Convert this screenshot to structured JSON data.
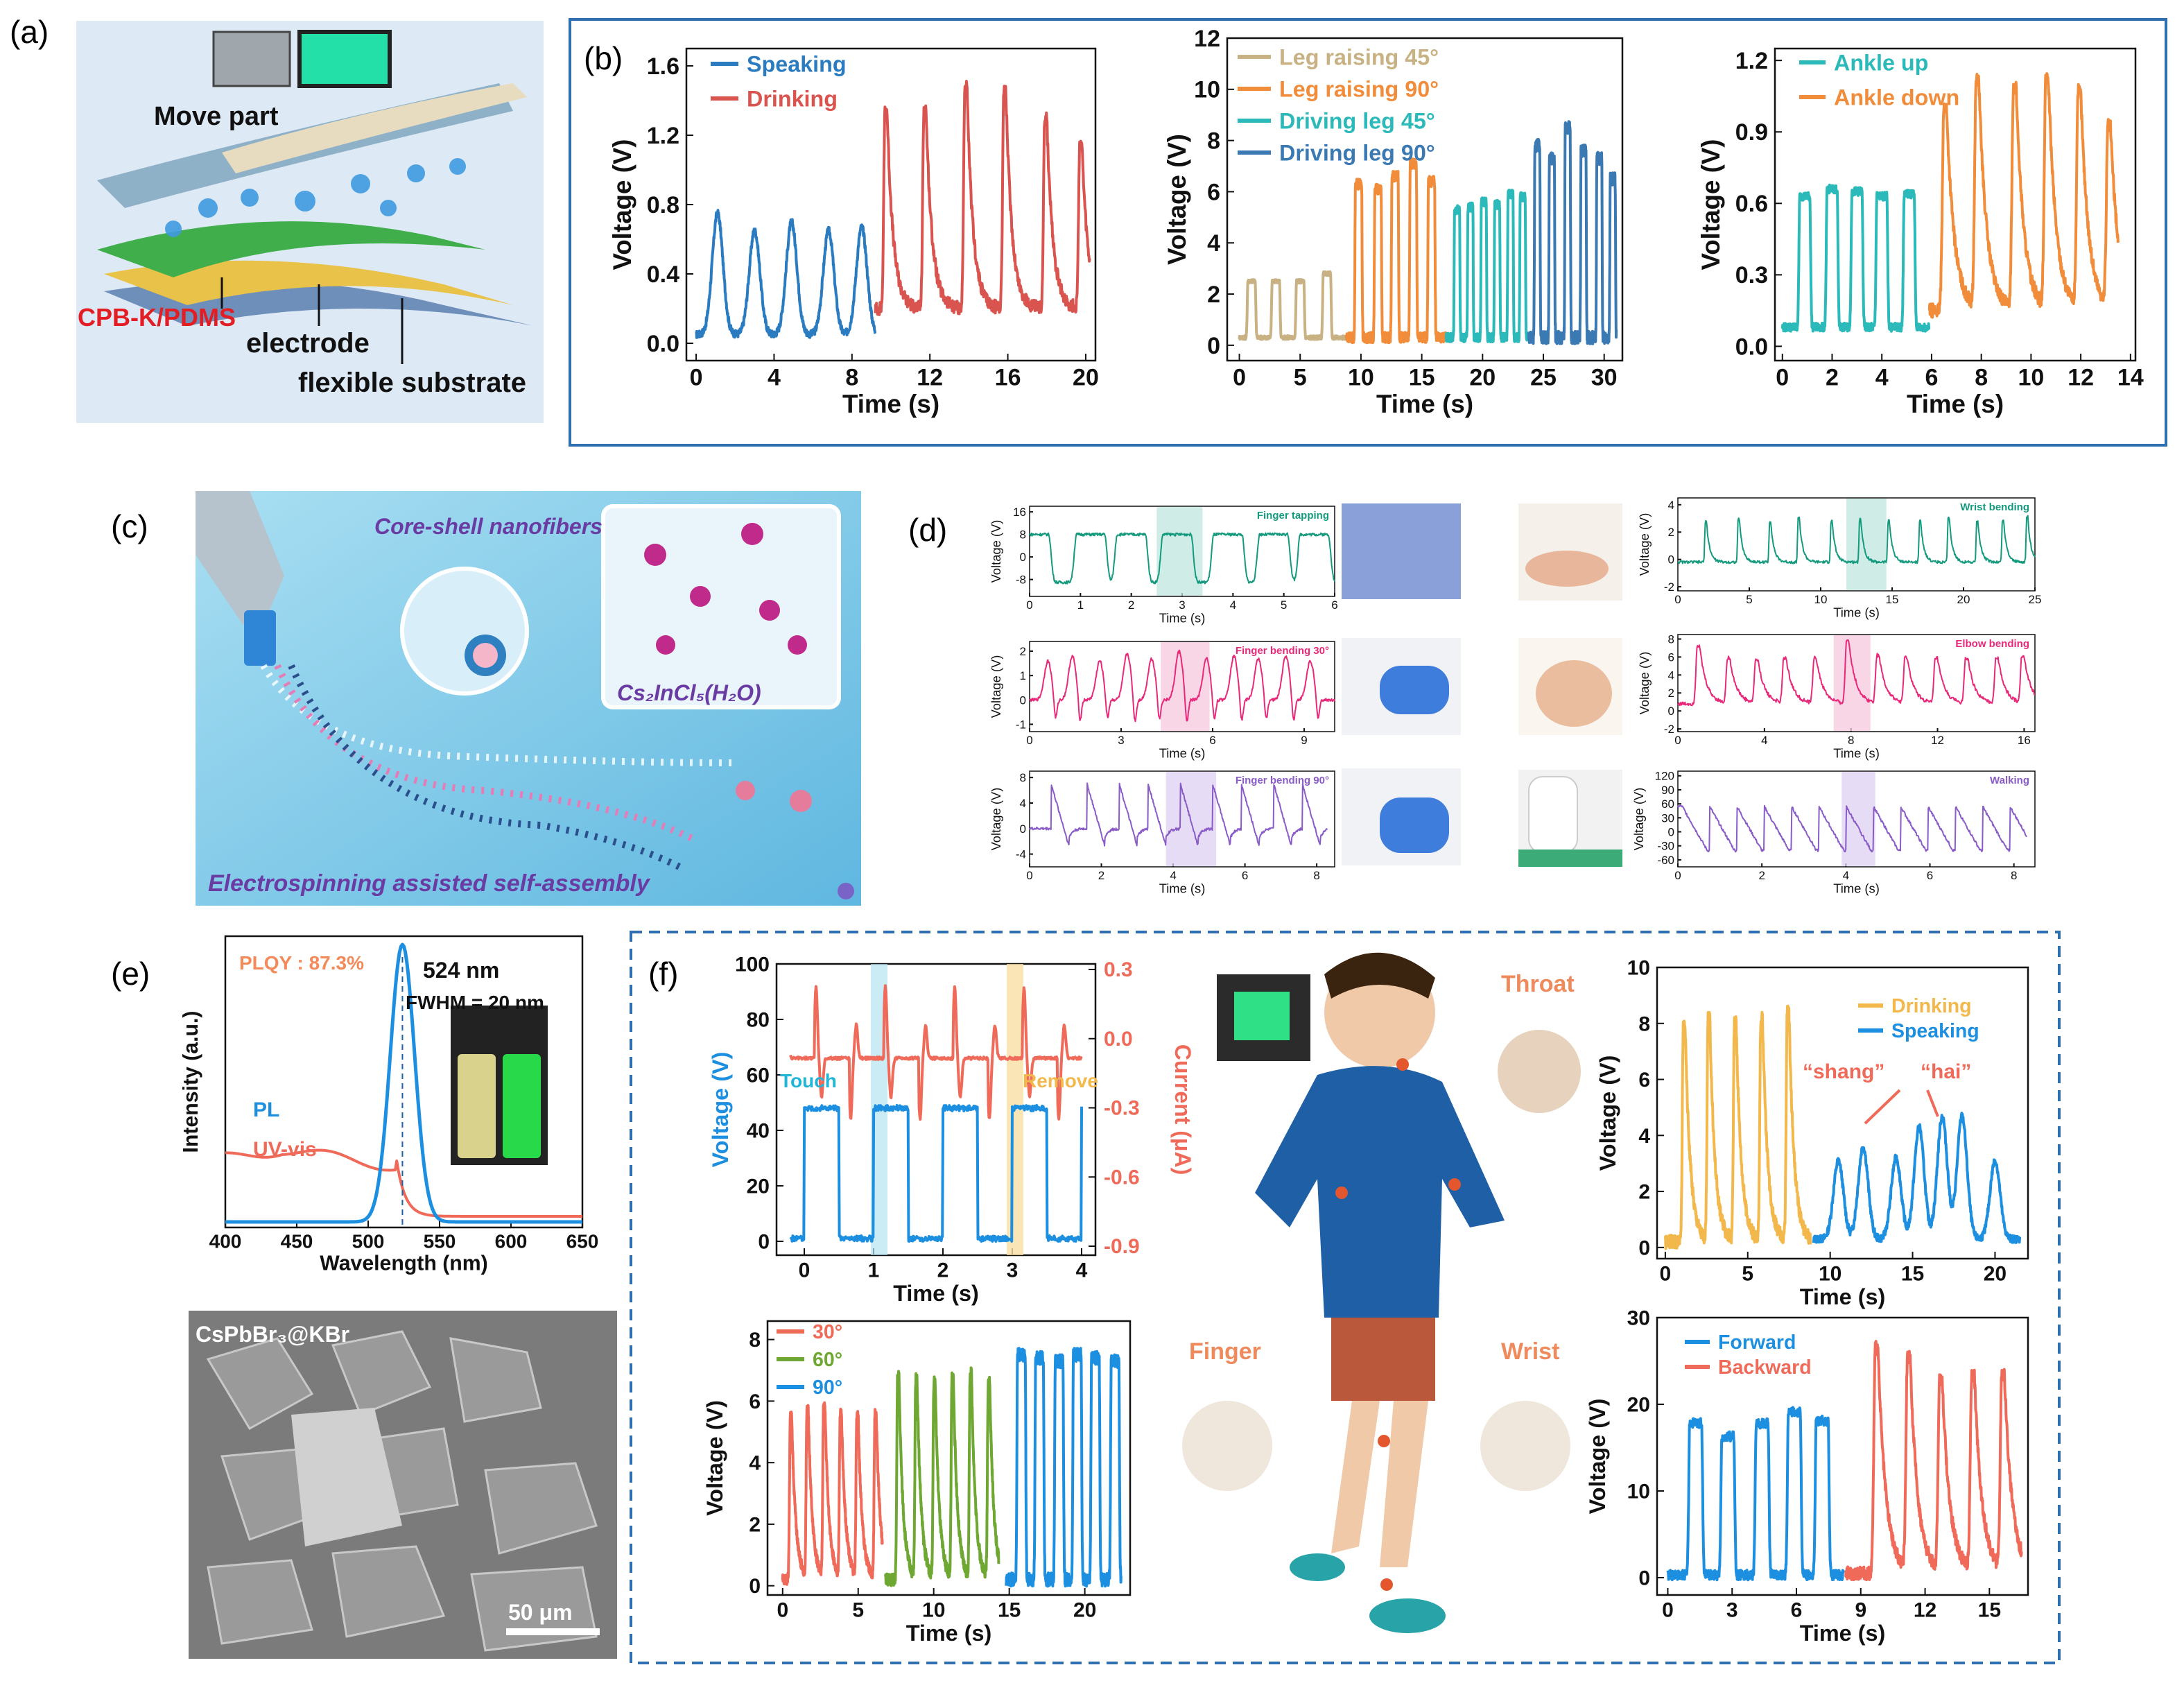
{
  "colors": {
    "blue": "#2a7bc0",
    "red": "#d9534f",
    "tan": "#c8b183",
    "orange": "#f08c3a",
    "teal": "#2bb9b9",
    "steelblue": "#3b79b3",
    "pink": "#e8297a",
    "green_d": "#149a7d",
    "purple": "#8a5cc7",
    "yellow": "#f2b84b",
    "lightblue": "#1c8fe0",
    "salmon": "#f06a5a",
    "olive": "#6ea832",
    "frame_blue": "#2f6fb0"
  },
  "panels": {
    "a": {
      "label": "(a)",
      "move_part": "Move part",
      "cpb": "CPB-K/PDMS",
      "electrode": "electrode",
      "substrate": "flexible substrate"
    },
    "b": {
      "label": "(b)"
    },
    "c": {
      "label": "(c)",
      "core_shell": "Core-shell nanofibers",
      "formula": "Cs₂InCl₅(H₂O)",
      "caption": "Electrospinning assisted self-assembly"
    },
    "d": {
      "label": "(d)"
    },
    "e": {
      "label": "(e)",
      "sem_label": "CsPbBr₃@KBr",
      "scale_bar": "50 μm"
    },
    "f": {
      "label": "(f)",
      "throat": "Throat",
      "finger": "Finger",
      "wrist": "Wrist"
    }
  },
  "chart_data": [
    {
      "id": "b1",
      "type": "line",
      "xlabel": "Time (s)",
      "ylabel": "Voltage (V)",
      "xlim": [
        -0.5,
        20.5
      ],
      "ylim": [
        -0.1,
        1.7
      ],
      "xticks": [
        0,
        4,
        8,
        12,
        16,
        20
      ],
      "yticks": [
        0.0,
        0.4,
        0.8,
        1.2,
        1.6
      ],
      "series": [
        {
          "name": "Speaking",
          "color": "#2a7bc0",
          "shape": "bump",
          "x0": 0,
          "x1": 9.2,
          "peaks": [
            1.1,
            3.0,
            4.9,
            6.8,
            8.5
          ],
          "amps": [
            0.7,
            0.6,
            0.65,
            0.6,
            0.62
          ],
          "base": 0.05,
          "w": 0.55
        },
        {
          "name": "Drinking",
          "color": "#d9534f",
          "shape": "spike",
          "x0": 9.2,
          "x1": 20.2,
          "peaks": [
            9.8,
            11.8,
            13.9,
            15.9,
            18.0,
            19.8
          ],
          "amps": [
            1.15,
            1.15,
            1.28,
            1.25,
            1.1,
            0.95
          ],
          "base": 0.2,
          "w": 0.35
        }
      ]
    },
    {
      "id": "b2",
      "type": "line",
      "xlabel": "Time (s)",
      "ylabel": "Voltage (V)",
      "xlim": [
        -1,
        31.5
      ],
      "ylim": [
        -0.6,
        12
      ],
      "xticks": [
        0,
        5,
        10,
        15,
        20,
        25,
        30
      ],
      "yticks": [
        0,
        2,
        4,
        6,
        8,
        10,
        12
      ],
      "series": [
        {
          "name": "Leg raising 45°",
          "color": "#c8b183",
          "shape": "square",
          "x0": 0,
          "x1": 8.8,
          "peaks": [
            1.0,
            3.0,
            5.0,
            7.2
          ],
          "amps": [
            2.2,
            2.2,
            2.2,
            2.5
          ],
          "base": 0.3,
          "w": 0.6
        },
        {
          "name": "Leg raising 90°",
          "color": "#f08c3a",
          "shape": "square",
          "x0": 8.8,
          "x1": 17.0,
          "peaks": [
            9.8,
            11.4,
            12.8,
            14.3,
            15.8
          ],
          "amps": [
            6.0,
            5.8,
            6.3,
            6.8,
            6.1
          ],
          "base": 0.3,
          "w": 0.5
        },
        {
          "name": "Driving leg 45°",
          "color": "#2bb9b9",
          "shape": "square",
          "x0": 17.0,
          "x1": 23.8,
          "peaks": [
            17.9,
            19.0,
            20.1,
            21.2,
            22.3,
            23.3
          ],
          "amps": [
            5.0,
            5.1,
            5.3,
            5.2,
            5.6,
            5.5
          ],
          "base": 0.3,
          "w": 0.4
        },
        {
          "name": "Driving leg 90°",
          "color": "#3b79b3",
          "shape": "square",
          "x0": 23.8,
          "x1": 31.0,
          "peaks": [
            24.5,
            25.7,
            27.0,
            28.3,
            29.6,
            30.7
          ],
          "amps": [
            7.5,
            7.0,
            8.2,
            7.3,
            7.0,
            6.2
          ],
          "base": 0.3,
          "w": 0.4
        }
      ]
    },
    {
      "id": "b3",
      "type": "line",
      "xlabel": "Time (s)",
      "ylabel": "Voltage (V)",
      "xlim": [
        -0.3,
        14.2
      ],
      "ylim": [
        -0.06,
        1.25
      ],
      "xticks": [
        0,
        2,
        4,
        6,
        8,
        10,
        12,
        14
      ],
      "yticks": [
        0.0,
        0.3,
        0.6,
        0.9,
        1.2
      ],
      "series": [
        {
          "name": "Ankle up",
          "color": "#2bb9b9",
          "shape": "square",
          "x0": 0,
          "x1": 5.9,
          "peaks": [
            0.9,
            2.0,
            3.0,
            4.0,
            5.1
          ],
          "amps": [
            0.55,
            0.58,
            0.57,
            0.55,
            0.56
          ],
          "base": 0.08,
          "w": 0.4
        },
        {
          "name": "Ankle down",
          "color": "#f08c3a",
          "shape": "spike",
          "x0": 5.9,
          "x1": 13.5,
          "peaks": [
            6.6,
            7.9,
            9.4,
            10.7,
            12.0,
            13.2
          ],
          "amps": [
            0.85,
            0.95,
            0.93,
            0.95,
            0.9,
            0.75
          ],
          "base": 0.15,
          "w": 0.35
        }
      ]
    },
    {
      "id": "d1",
      "type": "line",
      "title": "Finger tapping",
      "xlabel": "Time (s)",
      "ylabel": "Voltage (V)",
      "xlim": [
        0,
        6
      ],
      "ylim": [
        -14,
        18
      ],
      "xticks": [
        0,
        1,
        2,
        3,
        4,
        5,
        6
      ],
      "yticks": [
        -8,
        0,
        8,
        16
      ],
      "highlight": [
        2.5,
        3.4
      ],
      "highlight_color": "#bfe5df",
      "series": [
        {
          "color": "#149a7d",
          "shape": "square",
          "x0": 0,
          "x1": 6,
          "peaks": [
            0.1,
            1.2,
            2.0,
            2.9,
            3.9,
            4.8,
            5.6
          ],
          "amps": [
            17,
            17,
            17,
            17,
            17,
            17,
            17
          ],
          "base": -9,
          "w": 0.55
        }
      ]
    },
    {
      "id": "d2",
      "type": "line",
      "title": "Finger bending 30°",
      "xlabel": "Time (s)",
      "ylabel": "Voltage (V)",
      "xlim": [
        0,
        10
      ],
      "ylim": [
        -1.3,
        2.4
      ],
      "xticks": [
        0,
        3,
        6,
        9
      ],
      "yticks": [
        -1,
        0,
        1,
        2
      ],
      "highlight": [
        4.3,
        5.9
      ],
      "highlight_color": "#f7c8de",
      "series": [
        {
          "color": "#e8297a",
          "shape": "dipspike",
          "x0": 0,
          "x1": 10,
          "peaks": [
            0.6,
            1.4,
            2.3,
            3.2,
            4.0,
            4.9,
            5.8,
            6.7,
            7.5,
            8.4,
            9.2
          ],
          "amps": [
            1.6,
            1.8,
            1.6,
            1.9,
            1.7,
            2.0,
            1.7,
            1.8,
            1.7,
            1.8,
            1.6
          ],
          "base": 0.0,
          "w": 0.12
        }
      ]
    },
    {
      "id": "d3",
      "type": "line",
      "title": "Finger bending 90°",
      "xlabel": "Time (s)",
      "ylabel": "Voltage (V)",
      "xlim": [
        0,
        8.5
      ],
      "ylim": [
        -6,
        9
      ],
      "xticks": [
        0,
        2,
        4,
        6,
        8
      ],
      "yticks": [
        -4,
        0,
        4,
        8
      ],
      "highlight": [
        3.8,
        5.2
      ],
      "highlight_color": "#ded0f1",
      "series": [
        {
          "color": "#8a5cc7",
          "shape": "sawpair",
          "x0": 0,
          "x1": 8.3,
          "peaks": [
            0.6,
            1.6,
            2.5,
            3.3,
            4.2,
            5.1,
            5.9,
            6.8,
            7.6
          ],
          "amps": [
            7,
            7,
            7,
            7,
            7,
            7,
            7,
            7,
            7
          ],
          "base": 0,
          "w": 0.3
        }
      ]
    },
    {
      "id": "d4",
      "type": "line",
      "title": "Wrist bending",
      "xlabel": "Time (s)",
      "ylabel": "Voltage (V)",
      "xlim": [
        0,
        25
      ],
      "ylim": [
        -2.3,
        4.5
      ],
      "xticks": [
        0,
        5,
        10,
        15,
        20,
        25
      ],
      "yticks": [
        -2,
        0,
        2,
        4
      ],
      "highlight": [
        11.8,
        14.6
      ],
      "highlight_color": "#bfe5df",
      "series": [
        {
          "color": "#149a7d",
          "shape": "spike",
          "x0": 0,
          "x1": 25,
          "peaks": [
            2.0,
            4.3,
            6.5,
            8.5,
            10.8,
            12.8,
            14.8,
            17.0,
            19.0,
            21.0,
            22.8,
            24.5
          ],
          "amps": [
            3,
            3.2,
            3,
            3.3,
            3,
            3.2,
            3.1,
            3,
            3.2,
            3,
            3.1,
            3.3
          ],
          "base": -0.2,
          "w": 0.25
        }
      ]
    },
    {
      "id": "d5",
      "type": "line",
      "title": "Elbow bending",
      "xlabel": "Time (s)",
      "ylabel": "Voltage (V)",
      "xlim": [
        0,
        16.5
      ],
      "ylim": [
        -2.3,
        8.5
      ],
      "xticks": [
        0,
        4,
        8,
        12,
        16
      ],
      "yticks": [
        -2,
        0,
        2,
        4,
        6,
        8
      ],
      "highlight": [
        7.2,
        8.9
      ],
      "highlight_color": "#f7c8de",
      "series": [
        {
          "color": "#e8297a",
          "shape": "spike",
          "x0": 0,
          "x1": 16.5,
          "peaks": [
            1.0,
            2.4,
            3.7,
            5.0,
            6.4,
            7.9,
            9.3,
            10.6,
            12.0,
            13.4,
            14.8,
            16.0
          ],
          "amps": [
            6.5,
            5.0,
            4.8,
            5.0,
            5.0,
            7.0,
            5.3,
            5.0,
            5.0,
            5.0,
            5.0,
            5.2
          ],
          "base": 0.8,
          "w": 0.35
        }
      ]
    },
    {
      "id": "d6",
      "type": "line",
      "title": "Walking",
      "xlabel": "Time (s)",
      "ylabel": "Voltage (V)",
      "xlim": [
        0,
        8.5
      ],
      "ylim": [
        -75,
        130
      ],
      "xticks": [
        0,
        2,
        4,
        6,
        8
      ],
      "yticks": [
        -60,
        -30,
        0,
        30,
        60,
        90,
        120
      ],
      "highlight": [
        3.9,
        4.7
      ],
      "highlight_color": "#ded0f1",
      "series": [
        {
          "color": "#8a5cc7",
          "shape": "saw",
          "x0": 0,
          "x1": 8.3,
          "peaks": [
            0.1,
            0.75,
            1.4,
            2.05,
            2.7,
            3.35,
            4.0,
            4.65,
            5.3,
            5.95,
            6.6,
            7.25,
            7.9
          ],
          "amps": [
            95,
            95,
            95,
            95,
            95,
            95,
            95,
            95,
            95,
            95,
            95,
            95,
            95
          ],
          "base": -40,
          "w": 0.6
        }
      ]
    },
    {
      "id": "e1",
      "type": "line",
      "xlabel": "Wavelength (nm)",
      "ylabel": "Intensity (a.u.)",
      "xlim": [
        400,
        650
      ],
      "ylim": [
        0,
        1.05
      ],
      "xticks": [
        400,
        450,
        500,
        550,
        600,
        650
      ],
      "yticks": [],
      "annotations": {
        "plqy": "PLQY : 87.3%",
        "peak": "524 nm",
        "fwhm": "FWHM = 20 nm",
        "pl": "PL",
        "uvvis": "UV-vis"
      },
      "series": [
        {
          "name": "PL",
          "color": "#1c8fe0",
          "peak_x": 524,
          "fwhm": 20
        },
        {
          "name": "UV-vis",
          "color": "#f06a5a",
          "edge_x": 520
        }
      ]
    },
    {
      "id": "f1",
      "type": "line",
      "xlabel": "Time (s)",
      "ylabel": "Voltage (V)",
      "y2label": "Current (μA)",
      "xlim": [
        -0.4,
        4.2
      ],
      "ylim": [
        -5,
        100
      ],
      "xticks": [
        0,
        1,
        2,
        3,
        4
      ],
      "yticks": [
        0,
        20,
        40,
        60,
        80,
        100
      ],
      "y2ticks": [
        "0.3",
        "0.0",
        "-0.3",
        "-0.6",
        "-0.9"
      ],
      "annotations": {
        "touch": "Touch",
        "remove": "Remove"
      },
      "series": [
        {
          "name": "Voltage",
          "color": "#1c8fe0"
        },
        {
          "name": "Current",
          "color": "#f06a5a"
        }
      ]
    },
    {
      "id": "f2",
      "type": "line",
      "xlabel": "Time (s)",
      "ylabel": "Voltage (V)",
      "xlim": [
        -1,
        23
      ],
      "ylim": [
        -0.3,
        8.6
      ],
      "xticks": [
        0,
        5,
        10,
        15,
        20
      ],
      "yticks": [
        0,
        2,
        4,
        6,
        8
      ],
      "series": [
        {
          "name": "30°",
          "color": "#f06a5a",
          "shape": "spike",
          "x0": 0,
          "x1": 6.6,
          "peaks": [
            0.6,
            1.7,
            2.8,
            3.9,
            5.0,
            6.2
          ],
          "amps": [
            5.3,
            5.4,
            5.6,
            5.3,
            5.2,
            5.3
          ],
          "base": 0.2,
          "w": 0.3
        },
        {
          "name": "60°",
          "color": "#6ea832",
          "shape": "spike",
          "x0": 6.8,
          "x1": 14.3,
          "peaks": [
            7.7,
            8.9,
            10.1,
            11.3,
            12.5,
            13.7
          ],
          "amps": [
            6.6,
            6.4,
            6.3,
            6.5,
            6.6,
            6.4
          ],
          "base": 0.2,
          "w": 0.3
        },
        {
          "name": "90°",
          "color": "#1c8fe0",
          "shape": "square",
          "x0": 14.8,
          "x1": 22.4,
          "peaks": [
            15.8,
            17.0,
            18.3,
            19.5,
            20.7,
            22.0
          ],
          "amps": [
            7.3,
            7.2,
            7.1,
            7.3,
            7.2,
            7.1
          ],
          "base": 0.2,
          "w": 0.5
        }
      ]
    },
    {
      "id": "f3",
      "type": "line",
      "xlabel": "Time (s)",
      "ylabel": "Voltage (V)",
      "xlim": [
        -0.5,
        22
      ],
      "ylim": [
        -0.4,
        10
      ],
      "xticks": [
        0,
        5,
        10,
        15,
        20
      ],
      "yticks": [
        0,
        2,
        4,
        6,
        8,
        10
      ],
      "annotations": {
        "shang": "“shang”",
        "hai": "“hai”"
      },
      "series": [
        {
          "name": "Drinking",
          "color": "#f2b84b",
          "shape": "spike",
          "x0": 0,
          "x1": 8.8,
          "peaks": [
            1.2,
            2.7,
            4.3,
            5.9,
            7.5
          ],
          "amps": [
            7.8,
            7.9,
            7.8,
            7.9,
            8.2
          ],
          "base": 0.2,
          "w": 0.35
        },
        {
          "name": "Speaking",
          "color": "#1c8fe0",
          "shape": "bump",
          "x0": 9.0,
          "x1": 21.5,
          "peaks": [
            10.5,
            12.0,
            14.0,
            15.4,
            16.8,
            18.0,
            20.0
          ],
          "amps": [
            2.8,
            3.3,
            2.9,
            4.0,
            4.4,
            4.4,
            2.8
          ],
          "base": 0.3,
          "w": 0.6
        }
      ]
    },
    {
      "id": "f4",
      "type": "line",
      "xlabel": "Time (s)",
      "ylabel": "Voltage (V)",
      "xlim": [
        -0.5,
        16.8
      ],
      "ylim": [
        -2,
        30
      ],
      "xticks": [
        0,
        3,
        6,
        9,
        12,
        15
      ],
      "yticks": [
        0,
        10,
        20,
        30
      ],
      "series": [
        {
          "name": "Forward",
          "color": "#1c8fe0",
          "shape": "square",
          "x0": 0,
          "x1": 8.2,
          "peaks": [
            1.3,
            2.8,
            4.4,
            5.9,
            7.2
          ],
          "amps": [
            17.5,
            16.0,
            17.5,
            18.8,
            17.8
          ],
          "base": 0.3,
          "w": 0.55
        },
        {
          "name": "Backward",
          "color": "#f06a5a",
          "shape": "spike",
          "x0": 8.3,
          "x1": 16.5,
          "peaks": [
            9.8,
            11.3,
            12.8,
            14.3,
            15.7
          ],
          "amps": [
            26,
            24.5,
            22,
            22.5,
            22.5
          ],
          "base": 0.5,
          "w": 0.4
        }
      ]
    }
  ]
}
